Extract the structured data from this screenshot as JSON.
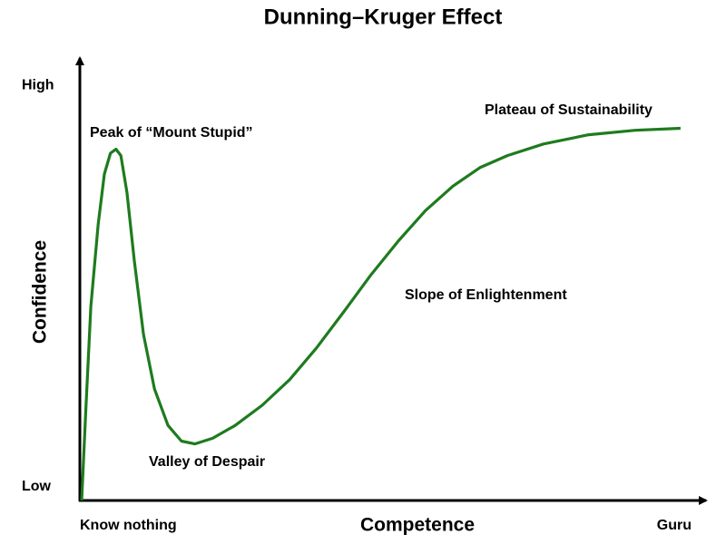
{
  "chart_data": {
    "type": "line",
    "title": "Dunning–Kruger Effect",
    "x_label": "Competence",
    "y_label": "Confidence",
    "x": [
      0.3,
      1.0,
      1.8,
      3.0,
      4.0,
      5.0,
      5.9,
      6.7,
      7.7,
      8.9,
      10.4,
      12.2,
      14.4,
      16.6,
      18.8,
      21.7,
      25.4,
      29.8,
      34.3,
      38.7,
      43.2,
      47.6,
      52.1,
      56.5,
      61.0,
      65.4,
      69.9,
      75.8,
      83.2,
      90.8,
      98.2
    ],
    "values": [
      -3.4,
      19.8,
      44.9,
      65.4,
      77.9,
      83.1,
      84.1,
      82.5,
      73.3,
      56.3,
      38.0,
      24.4,
      15.3,
      11.4,
      10.7,
      12.1,
      15.3,
      20.3,
      26.7,
      34.6,
      43.7,
      52.8,
      61.3,
      68.8,
      74.9,
      79.5,
      82.5,
      85.4,
      87.7,
      88.8,
      89.3
    ],
    "color": "#1e7b1e",
    "xlim": [
      0,
      100
    ],
    "xticks": [
      {
        "value": 0,
        "label": "Know nothing"
      },
      {
        "value": 100,
        "label": "Guru"
      }
    ],
    "ylim": [
      -3.4,
      106.8
    ],
    "yticks": [
      {
        "value": 0,
        "label": "Low"
      },
      {
        "value": 100,
        "label": "High"
      }
    ],
    "grid": false,
    "annotations": [
      "Peak of “Mount Stupid”",
      "Valley of Despair",
      "Slope of Enlightenment",
      "Plateau of Sustainability"
    ]
  }
}
